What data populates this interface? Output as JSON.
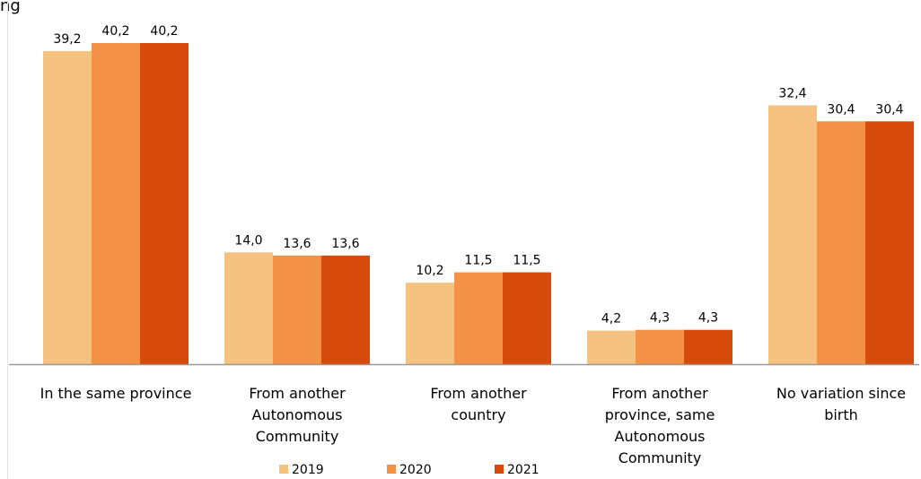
{
  "chart_data": {
    "type": "bar",
    "title_fragment": "ng",
    "categories": [
      [
        "In the same province"
      ],
      [
        "From another",
        "Autonomous",
        "Community"
      ],
      [
        "From another",
        "country"
      ],
      [
        "From another",
        "province, same",
        "Autonomous",
        "Community"
      ],
      [
        "No variation since",
        "birth"
      ]
    ],
    "series": [
      {
        "name": "2019",
        "color": "#F5C27F",
        "values": [
          39.2,
          14.0,
          10.2,
          4.2,
          32.4
        ],
        "labels": [
          "39,2",
          "14,0",
          "10,2",
          "4,2",
          "32,4"
        ]
      },
      {
        "name": "2020",
        "color": "#F39147",
        "values": [
          40.2,
          13.6,
          11.5,
          4.3,
          30.4
        ],
        "labels": [
          "40,2",
          "13,6",
          "11,5",
          "4,3",
          "30,4"
        ]
      },
      {
        "name": "2021",
        "color": "#D64B0C",
        "values": [
          40.2,
          13.6,
          11.5,
          4.3,
          30.4
        ],
        "labels": [
          "40,2",
          "13,6",
          "11,5",
          "4,3",
          "30,4"
        ]
      }
    ],
    "ylim": [
      0,
      40.2
    ],
    "grid": false,
    "legend_position": "bottom"
  }
}
